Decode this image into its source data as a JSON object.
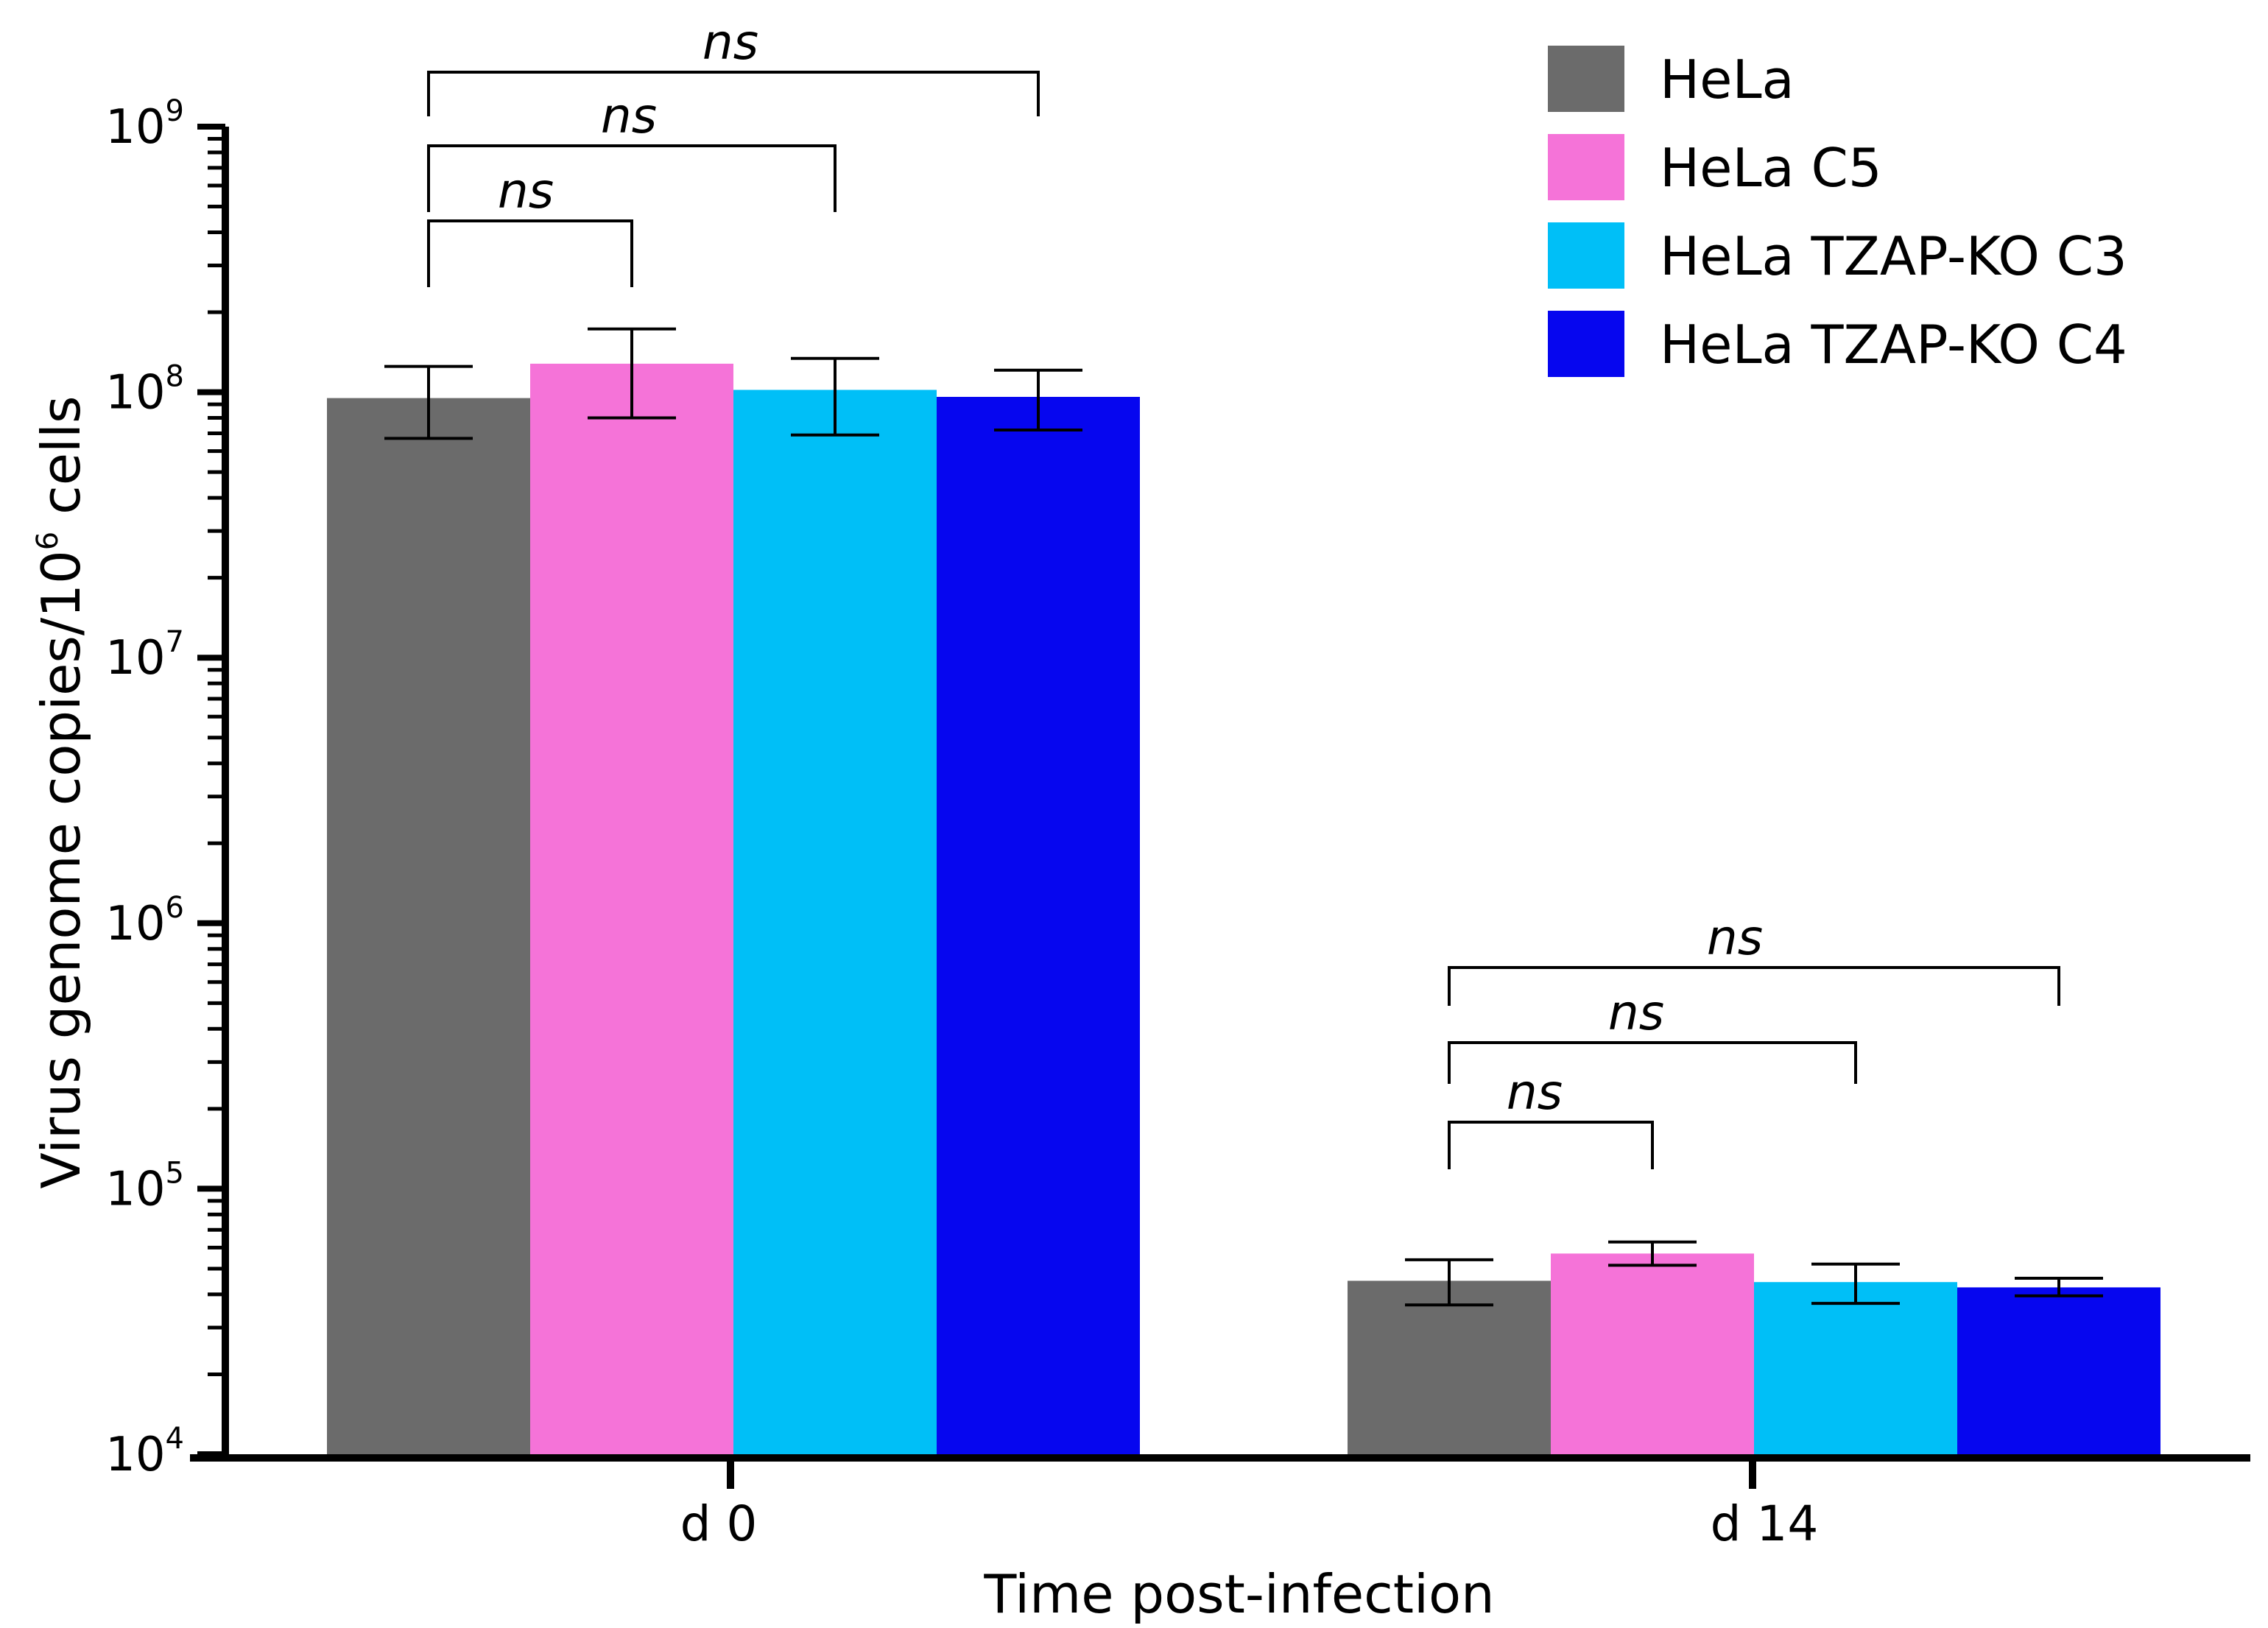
{
  "chart_data": {
    "type": "bar",
    "scale": "log",
    "categories": [
      "d 0",
      "d 14"
    ],
    "series": [
      {
        "name": "HeLa",
        "color": "#6b6b6b",
        "values": [
          95000000,
          45000
        ],
        "err_low": [
          67000000,
          36500
        ],
        "err_high": [
          125000000,
          54000
        ]
      },
      {
        "name": "HeLa C5",
        "color": "#f573d8",
        "values": [
          128000000,
          57000
        ],
        "err_low": [
          80000000,
          51500
        ],
        "err_high": [
          173000000,
          63000
        ]
      },
      {
        "name": "HeLa TZAP-KO C3",
        "color": "#00bff7",
        "values": [
          102000000,
          44500
        ],
        "err_low": [
          69000000,
          37000
        ],
        "err_high": [
          134000000,
          52000
        ]
      },
      {
        "name": "HeLa TZAP-KO C4",
        "color": "#0606ef",
        "values": [
          96000000,
          42500
        ],
        "err_low": [
          72000000,
          39500
        ],
        "err_high": [
          121000000,
          46000
        ]
      }
    ],
    "ylim": [
      10000,
      1000000000
    ],
    "ytick_exponents": [
      "9",
      "8",
      "7",
      "6",
      "5",
      "4"
    ],
    "ytick_base": "10",
    "xlabel": "Time post-infection",
    "ylabel": {
      "main": "Virus genome copies/10",
      "superscript": "6",
      "suffix": " cells"
    },
    "significance": [
      {
        "category": 0,
        "from_series": 0,
        "to_series": 1,
        "label": "ns"
      },
      {
        "category": 0,
        "from_series": 0,
        "to_series": 2,
        "label": "ns"
      },
      {
        "category": 0,
        "from_series": 0,
        "to_series": 3,
        "label": "ns"
      },
      {
        "category": 1,
        "from_series": 0,
        "to_series": 1,
        "label": "ns"
      },
      {
        "category": 1,
        "from_series": 0,
        "to_series": 2,
        "label": "ns"
      },
      {
        "category": 1,
        "from_series": 0,
        "to_series": 3,
        "label": "ns"
      }
    ],
    "legend_position": "top-right"
  }
}
